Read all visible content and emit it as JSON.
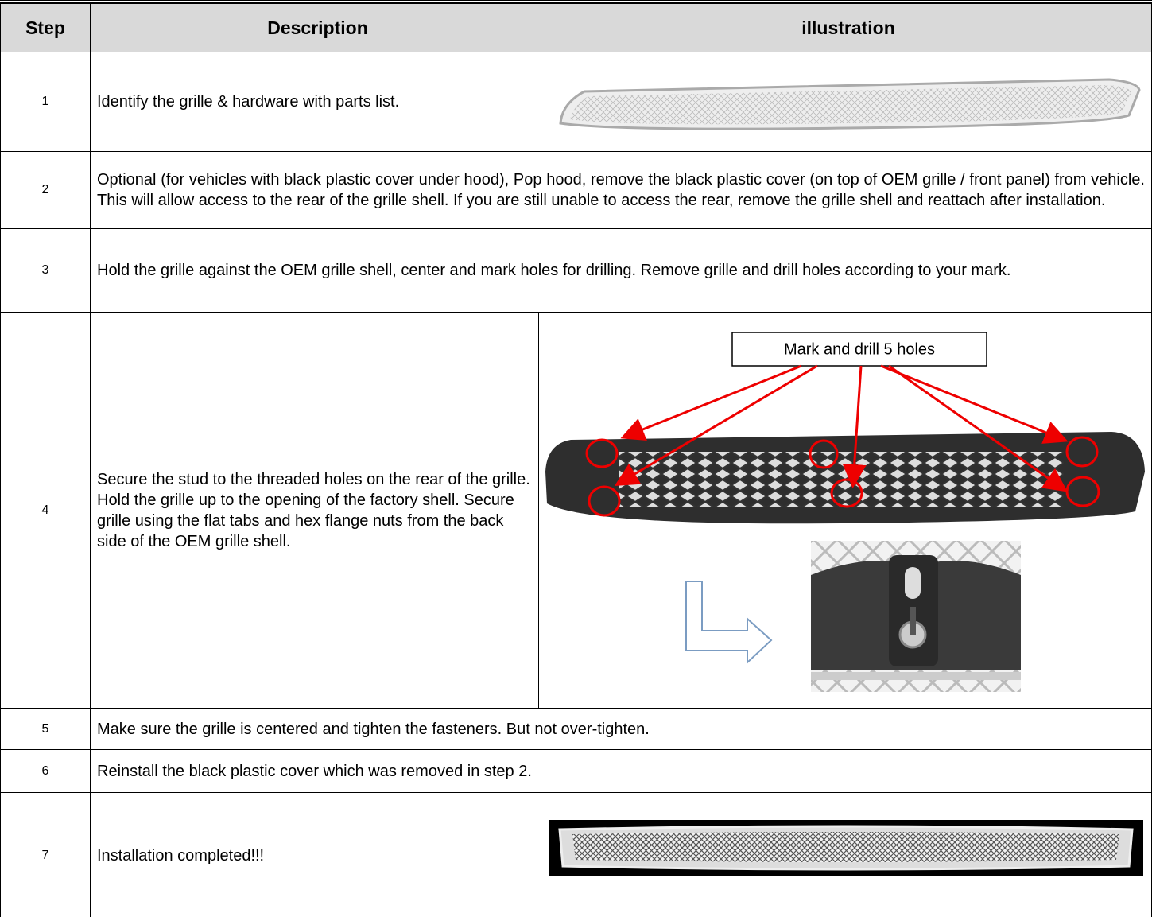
{
  "table": {
    "header": [
      "Step",
      "Description",
      "illustration"
    ],
    "rows": [
      {
        "step": "1",
        "description": "Identify the grille & hardware with parts list."
      },
      {
        "step": "2",
        "description": "Optional (for vehicles with black plastic cover under hood), Pop hood, remove the black plastic cover (on top of OEM grille / front panel) from vehicle. This will allow access to the rear of the grille shell. If you are still unable to access the rear, remove the grille shell and reattach after installation."
      },
      {
        "step": "3",
        "description": "Hold the grille against the OEM grille shell, center and mark holes for drilling. Remove grille and drill holes according to your mark."
      },
      {
        "step": "4",
        "description": "Secure the stud to the threaded holes on the rear of the grille.  Hold the grille up to the opening of the factory shell. Secure grille using the flat tabs and hex flange nuts from the back side of the OEM grille shell.",
        "annotation": "Mark and drill 5 holes"
      },
      {
        "step": "5",
        "description": "Make sure the grille is centered and tighten the fasteners. But not over-tighten."
      },
      {
        "step": "6",
        "description": "Reinstall the black plastic cover which was removed in step 2."
      },
      {
        "step": "7",
        "description": "Installation completed!!!"
      }
    ]
  }
}
